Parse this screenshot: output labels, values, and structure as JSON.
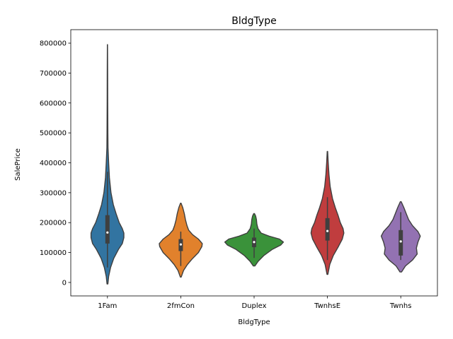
{
  "chart_data": {
    "type": "violin",
    "title": "BldgType",
    "xlabel": "BldgType",
    "ylabel": "SalePrice",
    "ylim": [
      -45000,
      845000
    ],
    "yticks": [
      0,
      100000,
      200000,
      300000,
      400000,
      500000,
      600000,
      700000,
      800000
    ],
    "yticklabels": [
      "0",
      "100000",
      "200000",
      "300000",
      "400000",
      "500000",
      "600000",
      "700000",
      "800000"
    ],
    "grid": false,
    "categories": [
      "1Fam",
      "2fmCon",
      "Duplex",
      "TwnhsE",
      "Twnhs"
    ],
    "series": [
      {
        "category": "1Fam",
        "color": "#3274a1",
        "min": -5000,
        "max": 795000,
        "q1": 130000,
        "median": 167000,
        "q3": 225000,
        "whisker_low": 50000,
        "whisker_high": 370000,
        "density": [
          [
            -5000,
            0.01
          ],
          [
            20000,
            0.03
          ],
          [
            50000,
            0.08
          ],
          [
            80000,
            0.16
          ],
          [
            110000,
            0.28
          ],
          [
            130000,
            0.38
          ],
          [
            150000,
            0.42
          ],
          [
            165000,
            0.42
          ],
          [
            180000,
            0.38
          ],
          [
            200000,
            0.3
          ],
          [
            230000,
            0.22
          ],
          [
            260000,
            0.15
          ],
          [
            300000,
            0.09
          ],
          [
            350000,
            0.05
          ],
          [
            400000,
            0.03
          ],
          [
            450000,
            0.015
          ],
          [
            500000,
            0.01
          ],
          [
            600000,
            0.008
          ],
          [
            700000,
            0.005
          ],
          [
            795000,
            0.002
          ]
        ]
      },
      {
        "category": "2fmCon",
        "color": "#e1812c",
        "min": 18000,
        "max": 265000,
        "q1": 105000,
        "median": 127000,
        "q3": 145000,
        "whisker_low": 55000,
        "whisker_high": 170000,
        "density": [
          [
            18000,
            0.01
          ],
          [
            40000,
            0.07
          ],
          [
            60000,
            0.17
          ],
          [
            80000,
            0.3
          ],
          [
            100000,
            0.45
          ],
          [
            120000,
            0.54
          ],
          [
            130000,
            0.55
          ],
          [
            145000,
            0.45
          ],
          [
            160000,
            0.3
          ],
          [
            175000,
            0.2
          ],
          [
            190000,
            0.16
          ],
          [
            210000,
            0.12
          ],
          [
            230000,
            0.09
          ],
          [
            250000,
            0.05
          ],
          [
            265000,
            0.008
          ]
        ]
      },
      {
        "category": "Duplex",
        "color": "#3a923a",
        "min": 55000,
        "max": 230000,
        "q1": 118000,
        "median": 135000,
        "q3": 150000,
        "whisker_low": 82000,
        "whisker_high": 180000,
        "density": [
          [
            55000,
            0.02
          ],
          [
            70000,
            0.1
          ],
          [
            90000,
            0.25
          ],
          [
            110000,
            0.46
          ],
          [
            125000,
            0.68
          ],
          [
            135000,
            0.75
          ],
          [
            145000,
            0.65
          ],
          [
            155000,
            0.38
          ],
          [
            165000,
            0.18
          ],
          [
            180000,
            0.1
          ],
          [
            195000,
            0.07
          ],
          [
            210000,
            0.06
          ],
          [
            222000,
            0.04
          ],
          [
            230000,
            0.01
          ]
        ]
      },
      {
        "category": "TwnhsE",
        "color": "#c03d3e",
        "min": 27000,
        "max": 438000,
        "q1": 140000,
        "median": 172000,
        "q3": 215000,
        "whisker_low": 75000,
        "whisker_high": 285000,
        "density": [
          [
            27000,
            0.01
          ],
          [
            60000,
            0.06
          ],
          [
            90000,
            0.15
          ],
          [
            120000,
            0.28
          ],
          [
            145000,
            0.38
          ],
          [
            165000,
            0.42
          ],
          [
            180000,
            0.4
          ],
          [
            200000,
            0.33
          ],
          [
            225000,
            0.27
          ],
          [
            250000,
            0.2
          ],
          [
            280000,
            0.13
          ],
          [
            320000,
            0.07
          ],
          [
            360000,
            0.04
          ],
          [
            400000,
            0.02
          ],
          [
            438000,
            0.005
          ]
        ]
      },
      {
        "category": "Twnhs",
        "color": "#9372b2",
        "min": 35000,
        "max": 270000,
        "q1": 90000,
        "median": 137000,
        "q3": 175000,
        "whisker_low": 75000,
        "whisker_high": 235000,
        "density": [
          [
            35000,
            0.02
          ],
          [
            55000,
            0.12
          ],
          [
            75000,
            0.3
          ],
          [
            95000,
            0.42
          ],
          [
            115000,
            0.4
          ],
          [
            135000,
            0.44
          ],
          [
            155000,
            0.5
          ],
          [
            170000,
            0.44
          ],
          [
            190000,
            0.3
          ],
          [
            210000,
            0.2
          ],
          [
            230000,
            0.14
          ],
          [
            250000,
            0.08
          ],
          [
            270000,
            0.01
          ]
        ]
      }
    ]
  }
}
